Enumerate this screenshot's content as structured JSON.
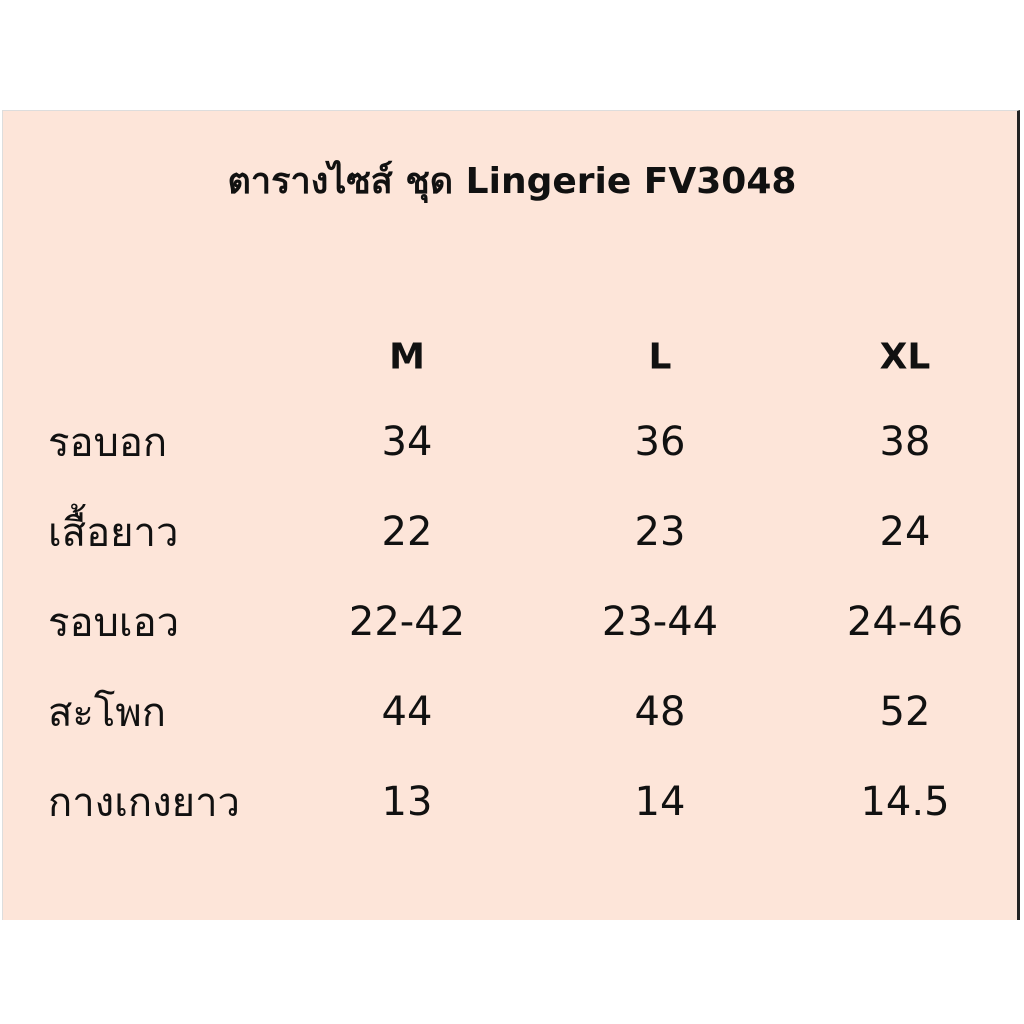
{
  "title": "ตารางไซส์ ชุด Lingerie FV3048",
  "sizes": [
    "M",
    "L",
    "XL"
  ],
  "rows": [
    {
      "label": "รอบอก",
      "values": [
        "34",
        "36",
        "38"
      ]
    },
    {
      "label": "เสื้อยาว",
      "values": [
        "22",
        "23",
        "24"
      ]
    },
    {
      "label": "รอบเอว",
      "values": [
        "22-42",
        "23-44",
        "24-46"
      ]
    },
    {
      "label": "สะโพก",
      "values": [
        "44",
        "48",
        "52"
      ]
    },
    {
      "label": "กางเกงยาว",
      "values": [
        "13",
        "14",
        "14.5"
      ]
    }
  ],
  "colors": {
    "background": "#fde5d9",
    "text": "#111111"
  }
}
